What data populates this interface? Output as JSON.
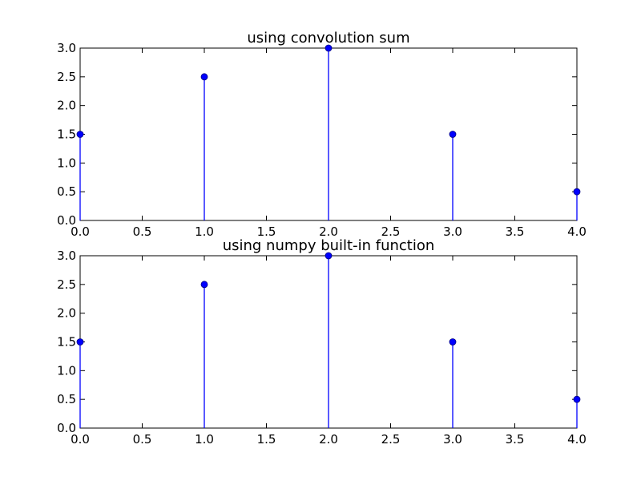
{
  "figure": {
    "background": "#ffffff"
  },
  "chart_data": [
    {
      "type": "stem",
      "title": "using convolution sum",
      "xlabel": "",
      "ylabel": "",
      "x": [
        0,
        1,
        2,
        3,
        4
      ],
      "y": [
        1.5,
        2.5,
        3.0,
        1.5,
        0.5
      ],
      "xlim": [
        0,
        4
      ],
      "ylim": [
        0,
        3
      ],
      "xticks": [
        "0.0",
        "0.5",
        "1.0",
        "1.5",
        "2.0",
        "2.5",
        "3.0",
        "3.5",
        "4.0"
      ],
      "yticks": [
        "0.0",
        "0.5",
        "1.0",
        "1.5",
        "2.0",
        "2.5",
        "3.0"
      ],
      "grid": false,
      "color": "#0000ff",
      "marker_color": "#0000ff",
      "marker_edge_color": "#000080"
    },
    {
      "type": "stem",
      "title": "using numpy built-in function",
      "xlabel": "",
      "ylabel": "",
      "x": [
        0,
        1,
        2,
        3,
        4
      ],
      "y": [
        1.5,
        2.5,
        3.0,
        1.5,
        0.5
      ],
      "xlim": [
        0,
        4
      ],
      "ylim": [
        0,
        3
      ],
      "xticks": [
        "0.0",
        "0.5",
        "1.0",
        "1.5",
        "2.0",
        "2.5",
        "3.0",
        "3.5",
        "4.0"
      ],
      "yticks": [
        "0.0",
        "0.5",
        "1.0",
        "1.5",
        "2.0",
        "2.5",
        "3.0"
      ],
      "grid": false,
      "color": "#0000ff",
      "marker_color": "#0000ff",
      "marker_edge_color": "#000080"
    }
  ]
}
